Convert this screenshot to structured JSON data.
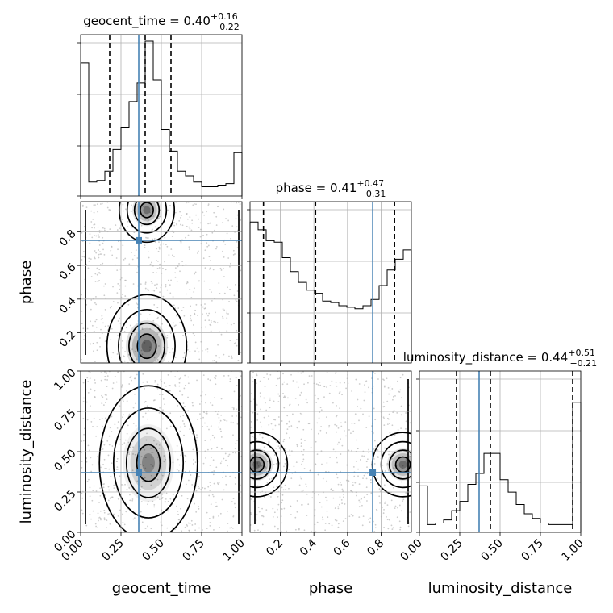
{
  "chart_data": {
    "type": "corner",
    "parameters": [
      "geocent_time",
      "phase",
      "luminosity_distance"
    ],
    "axis_labels": [
      "geocent_time",
      "phase",
      "luminosity_distance"
    ],
    "ranges": [
      [
        0.0,
        1.0
      ],
      [
        0.02,
        0.98
      ],
      [
        0.0,
        1.0
      ]
    ],
    "truths": [
      0.36,
      0.75,
      0.37
    ],
    "truth_color": "#4682b4",
    "grid": true,
    "titles": [
      {
        "name": "geocent_time",
        "sep": " = ",
        "value": "0.40",
        "plus": "+0.16",
        "minus": "−0.22"
      },
      {
        "name": "phase",
        "sep": " = ",
        "value": "0.41",
        "plus": "+0.47",
        "minus": "−0.31"
      },
      {
        "name": "luminosity_distance",
        "sep": " = ",
        "value": "0.44",
        "plus": "+0.51",
        "minus": "−0.21"
      }
    ],
    "quantiles": [
      [
        0.18,
        0.4,
        0.56
      ],
      [
        0.1,
        0.41,
        0.88
      ],
      [
        0.23,
        0.44,
        0.95
      ]
    ],
    "histograms": [
      {
        "edges_min": 0.0,
        "edges_max": 1.0,
        "values": [
          0.86,
          0.09,
          0.1,
          0.16,
          0.3,
          0.44,
          0.61,
          0.73,
          1.0,
          0.75,
          0.43,
          0.29,
          0.16,
          0.13,
          0.09,
          0.06,
          0.06,
          0.07,
          0.08,
          0.28
        ]
      },
      {
        "edges_min": 0.02,
        "edges_max": 0.98,
        "values": [
          0.91,
          0.86,
          0.79,
          0.78,
          0.68,
          0.59,
          0.52,
          0.47,
          0.45,
          0.4,
          0.39,
          0.37,
          0.36,
          0.35,
          0.37,
          0.41,
          0.5,
          0.6,
          0.67,
          0.73
        ]
      },
      {
        "edges_min": 0.0,
        "edges_max": 1.0,
        "values": [
          0.3,
          0.05,
          0.06,
          0.08,
          0.14,
          0.2,
          0.31,
          0.38,
          0.51,
          0.51,
          0.34,
          0.26,
          0.18,
          0.12,
          0.09,
          0.06,
          0.05,
          0.05,
          0.05,
          0.84
        ]
      }
    ],
    "ticks": {
      "x": [
        [
          "0.00",
          "0.25",
          "0.50",
          "0.75",
          "1.00"
        ],
        [
          "0.2",
          "0.4",
          "0.6",
          "0.8"
        ],
        [
          "0.00",
          "0.25",
          "0.50",
          "0.75",
          "1.00"
        ]
      ],
      "y": [
        null,
        [
          "0.2",
          "0.4",
          "0.6",
          "0.8"
        ],
        [
          "0.00",
          "0.25",
          "0.50",
          "0.75",
          "1.00"
        ]
      ]
    },
    "density_peaks": {
      "1_0": [
        {
          "x": 0.41,
          "y": 0.12,
          "w": 0.13,
          "h": 0.16,
          "a": 1.0
        },
        {
          "x": 0.41,
          "y": 0.93,
          "w": 0.09,
          "h": 0.1,
          "a": 0.8
        }
      ],
      "2_0": [
        {
          "x": 0.42,
          "y": 0.43,
          "w": 0.16,
          "h": 0.24,
          "a": 0.5
        }
      ],
      "2_1": [
        {
          "x": 0.06,
          "y": 0.42,
          "w": 0.1,
          "h": 0.1,
          "a": 0.9
        },
        {
          "x": 0.93,
          "y": 0.42,
          "w": 0.1,
          "h": 0.1,
          "a": 0.85
        }
      ]
    }
  }
}
